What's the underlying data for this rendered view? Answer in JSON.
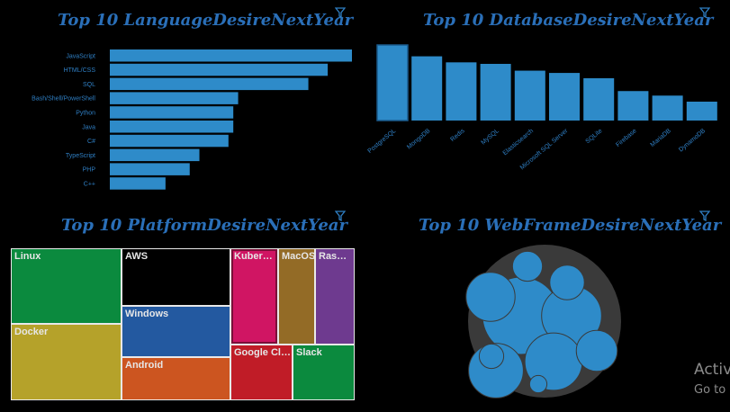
{
  "colors": {
    "bar": "#2e8bc9",
    "title": "#2a6fb8",
    "background": "#000000",
    "bubble_container": "#3a3a3a"
  },
  "icons": {
    "filter": "filter-icon"
  },
  "panels": {
    "language": {
      "title": "Top 10 LanguageDesireNextYear"
    },
    "database": {
      "title": "Top 10 DatabaseDesireNextYear"
    },
    "platform": {
      "title": "Top 10 PlatformDesireNextYear"
    },
    "webframe": {
      "title": "Top 10 WebFrameDesireNextYear"
    }
  },
  "watermark": {
    "line1": "Activ",
    "line2": "Go to"
  },
  "chart_data": [
    {
      "type": "bar",
      "orientation": "horizontal",
      "categories": [
        "JavaScript",
        "HTML/CSS",
        "SQL",
        "Bash/Shell/PowerShell",
        "Python",
        "Java",
        "C#",
        "TypeScript",
        "PHP",
        "C++"
      ],
      "values": [
        100,
        90,
        82,
        53,
        51,
        51,
        49,
        37,
        33,
        23
      ]
    },
    {
      "type": "bar",
      "orientation": "vertical",
      "categories": [
        "PostgreSQL",
        "MongoDB",
        "Redis",
        "MySQL",
        "Elasticsearch",
        "Microsoft SQL Server",
        "SQLite",
        "Firebase",
        "MariaDB",
        "DynamoDB"
      ],
      "values": [
        100,
        85,
        77,
        75,
        66,
        63,
        56,
        39,
        33,
        25
      ]
    },
    {
      "type": "treemap",
      "items": [
        {
          "name": "Linux",
          "value": 100,
          "color": "#0b8a3e"
        },
        {
          "name": "Docker",
          "value": 69,
          "color": "#b5a22a"
        },
        {
          "name": "AWS",
          "value": 50,
          "color": "#000000"
        },
        {
          "name": "Windows",
          "value": 48,
          "color": "#2359a0"
        },
        {
          "name": "Android",
          "value": 36,
          "color": "#cc5520"
        },
        {
          "name": "Kuber…",
          "value": 34,
          "color": "#d01563"
        },
        {
          "name": "MacOS",
          "value": 17,
          "color": "#936b26"
        },
        {
          "name": "Ras…",
          "value": 15,
          "color": "#6e3a8f"
        },
        {
          "name": "Google Cl…",
          "value": 21,
          "color": "#c01c27"
        },
        {
          "name": "Slack",
          "value": 14,
          "color": "#0b8a3e"
        }
      ]
    },
    {
      "type": "bubble",
      "values": [
        100,
        60,
        55,
        50,
        40,
        28,
        20,
        15,
        10,
        5
      ]
    }
  ]
}
